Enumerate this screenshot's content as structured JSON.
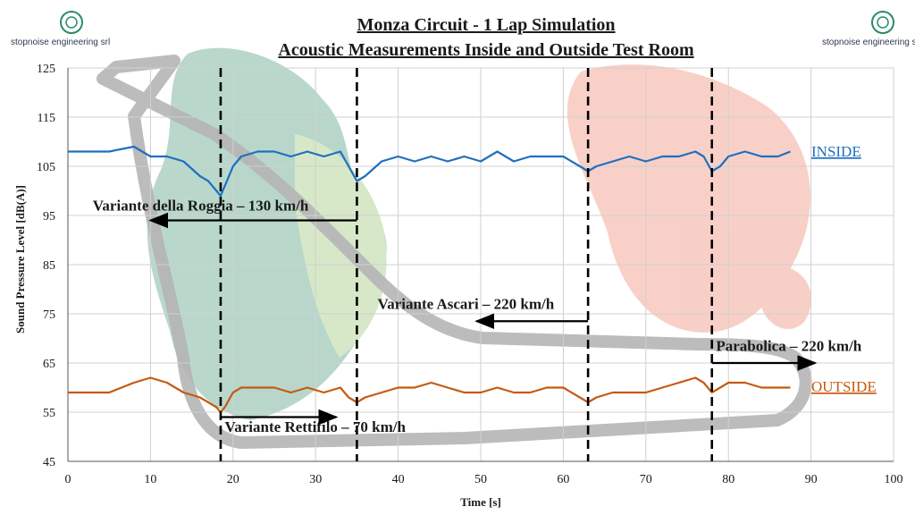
{
  "brand": {
    "logo_left": "stopnoise engineering srl",
    "logo_right": "stopnoise engineering srl",
    "accent": "#2b3a55"
  },
  "chart_data": {
    "type": "line",
    "title": "Monza Circuit - 1 Lap Simulation",
    "subtitle": "Acoustic Measurements Inside and Outside Test Room",
    "xlabel": "Time [s]",
    "ylabel": "Sound Pressure Level [dB(A)]",
    "xlim": [
      0,
      100
    ],
    "ylim": [
      45,
      125
    ],
    "xticks": [
      0,
      10,
      20,
      30,
      40,
      50,
      60,
      70,
      80,
      90,
      100
    ],
    "yticks": [
      45,
      55,
      65,
      75,
      85,
      95,
      105,
      115,
      125
    ],
    "grid": true,
    "series": [
      {
        "name": "INSIDE",
        "color": "#1f6fc0",
        "x": [
          0,
          5,
          8,
          10,
          12,
          14,
          16,
          17,
          18,
          18.5,
          19,
          20,
          21,
          23,
          25,
          27,
          29,
          31,
          33,
          34,
          35,
          36,
          38,
          40,
          42,
          44,
          46,
          48,
          50,
          52,
          54,
          56,
          58,
          60,
          62,
          63,
          64,
          66,
          68,
          70,
          72,
          74,
          76,
          77,
          78,
          79,
          80,
          82,
          84,
          86,
          87.5
        ],
        "y": [
          108,
          108,
          109,
          107,
          107,
          106,
          103,
          102,
          100,
          99,
          101,
          105,
          107,
          108,
          108,
          107,
          108,
          107,
          108,
          105,
          102,
          103,
          106,
          107,
          106,
          107,
          106,
          107,
          106,
          108,
          106,
          107,
          107,
          107,
          105,
          104,
          105,
          106,
          107,
          106,
          107,
          107,
          108,
          107,
          104,
          105,
          107,
          108,
          107,
          107,
          108
        ]
      },
      {
        "name": "OUTSIDE",
        "color": "#c55a11",
        "x": [
          0,
          5,
          8,
          10,
          12,
          14,
          16,
          17,
          18,
          18.5,
          19,
          20,
          21,
          23,
          25,
          27,
          29,
          31,
          33,
          34,
          35,
          36,
          38,
          40,
          42,
          44,
          46,
          48,
          50,
          52,
          54,
          56,
          58,
          60,
          62,
          63,
          64,
          66,
          68,
          70,
          72,
          74,
          76,
          77,
          78,
          79,
          80,
          82,
          84,
          86,
          87.5
        ],
        "y": [
          59,
          59,
          61,
          62,
          61,
          59,
          58,
          57,
          56,
          55,
          56,
          59,
          60,
          60,
          60,
          59,
          60,
          59,
          60,
          58,
          57,
          58,
          59,
          60,
          60,
          61,
          60,
          59,
          59,
          60,
          59,
          59,
          60,
          60,
          58,
          57,
          58,
          59,
          59,
          59,
          60,
          61,
          62,
          61,
          59,
          60,
          61,
          61,
          60,
          60,
          60
        ]
      }
    ],
    "markers": [
      18.5,
      35,
      63,
      78
    ],
    "annotations": [
      {
        "text": "Variante della Roggia – 130 km/h",
        "x": 3,
        "y": 96,
        "arrow_from": 35,
        "arrow_to": 10,
        "arrow_y": 94
      },
      {
        "text": "Variante Ascari – 220 km/h",
        "x": 37.5,
        "y": 76,
        "arrow_from": 63,
        "arrow_to": 49.5,
        "arrow_y": 73.5
      },
      {
        "text": "Parabolica – 220 km/h",
        "x": 78.5,
        "y": 67.5,
        "arrow_from": 78,
        "arrow_to": 90.5,
        "arrow_y": 65
      },
      {
        "text": "Variante Rettifilo – 70 km/h",
        "x": 19,
        "y": 51,
        "arrow_from": 18.5,
        "arrow_to": 32.5,
        "arrow_y": 54
      }
    ]
  }
}
